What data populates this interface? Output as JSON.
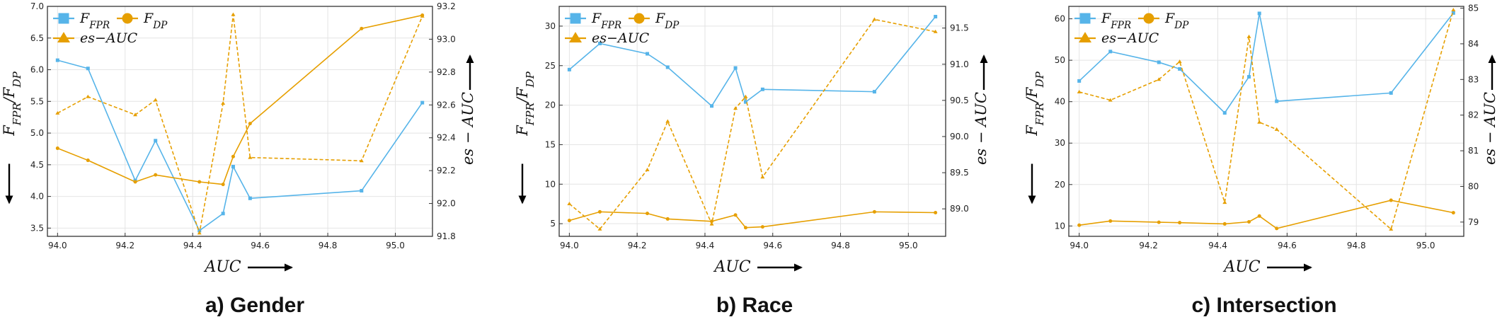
{
  "colors": {
    "fpr": "#56B4E9",
    "dp": "#E69F00",
    "es": "#E69F00"
  },
  "chart_data": [
    {
      "type": "line",
      "caption": "a) Gender",
      "xlabel": "AUC",
      "ylabel_left": "F_FPR/F_DP",
      "ylabel_right": "es − AUC",
      "xlim": [
        93.97,
        95.11
      ],
      "ylim_left": [
        3.37,
        7.0
      ],
      "ylim_right": [
        91.8,
        93.2
      ],
      "x_ticks": [
        94.0,
        94.2,
        94.4,
        94.6,
        94.8,
        95.0
      ],
      "x_tick_labels": [
        "94.0",
        "94.2",
        "94.4",
        "94.6",
        "94.8",
        "95.0"
      ],
      "y_left_ticks": [
        3.5,
        4.0,
        4.5,
        5.0,
        5.5,
        6.0,
        6.5,
        7.0
      ],
      "y_left_tick_labels": [
        "3.5",
        "4.0",
        "4.5",
        "5.0",
        "5.5",
        "6.0",
        "6.5",
        "7.0"
      ],
      "y_right_ticks": [
        91.8,
        92.0,
        92.2,
        92.4,
        92.6,
        92.8,
        93.0,
        93.2
      ],
      "y_right_tick_labels": [
        "91.8",
        "92.0",
        "92.2",
        "92.4",
        "92.6",
        "92.8",
        "93.0",
        "93.2"
      ],
      "series": [
        {
          "name": "F_FPR",
          "axis": "left",
          "marker": "square",
          "style": "solid",
          "x": [
            94.0,
            94.09,
            94.23,
            94.29,
            94.42,
            94.49,
            94.52,
            94.57,
            94.9,
            95.08
          ],
          "values": [
            6.15,
            6.02,
            4.25,
            4.88,
            3.46,
            3.73,
            4.47,
            3.97,
            4.09,
            5.48
          ]
        },
        {
          "name": "F_DP",
          "axis": "left",
          "marker": "circle",
          "style": "solid",
          "x": [
            94.0,
            94.09,
            94.23,
            94.29,
            94.42,
            94.49,
            94.52,
            94.57,
            94.9,
            95.08
          ],
          "values": [
            4.76,
            4.57,
            4.23,
            4.34,
            4.23,
            4.19,
            4.63,
            5.15,
            6.65,
            6.86
          ]
        },
        {
          "name": "es−AUC",
          "axis": "right",
          "marker": "triangle",
          "style": "dashed",
          "x": [
            94.0,
            94.09,
            94.23,
            94.29,
            94.42,
            94.49,
            94.52,
            94.57,
            94.9,
            95.08
          ],
          "values": [
            92.55,
            92.65,
            92.54,
            92.63,
            91.82,
            92.61,
            93.15,
            92.28,
            92.26,
            93.14
          ]
        }
      ]
    },
    {
      "type": "line",
      "caption": "b) Race",
      "xlabel": "AUC",
      "ylabel_left": "F_FPR/F_DP",
      "ylabel_right": "es − AUC",
      "xlim": [
        93.97,
        95.11
      ],
      "ylim_left": [
        3.4,
        32.5
      ],
      "ylim_right": [
        88.62,
        91.8
      ],
      "x_ticks": [
        94.0,
        94.2,
        94.4,
        94.6,
        94.8,
        95.0
      ],
      "x_tick_labels": [
        "94.0",
        "94.2",
        "94.4",
        "94.6",
        "94.8",
        "95.0"
      ],
      "y_left_ticks": [
        5,
        10,
        15,
        20,
        25,
        30
      ],
      "y_left_tick_labels": [
        "5",
        "10",
        "15",
        "20",
        "25",
        "30"
      ],
      "y_right_ticks": [
        89.0,
        89.5,
        90.0,
        90.5,
        91.0,
        91.5
      ],
      "y_right_tick_labels": [
        "89.0",
        "89.5",
        "90.0",
        "90.5",
        "91.0",
        "91.5"
      ],
      "series": [
        {
          "name": "F_FPR",
          "axis": "left",
          "marker": "square",
          "style": "solid",
          "x": [
            94.0,
            94.09,
            94.23,
            94.29,
            94.42,
            94.49,
            94.52,
            94.57,
            94.9,
            95.08
          ],
          "values": [
            24.5,
            27.8,
            26.5,
            24.8,
            19.9,
            24.7,
            20.4,
            22.0,
            21.7,
            31.2
          ]
        },
        {
          "name": "F_DP",
          "axis": "left",
          "marker": "circle",
          "style": "solid",
          "x": [
            94.0,
            94.09,
            94.23,
            94.29,
            94.42,
            94.49,
            94.52,
            94.57,
            94.9,
            95.08
          ],
          "values": [
            5.4,
            6.5,
            6.3,
            5.6,
            5.3,
            6.1,
            4.5,
            4.6,
            6.5,
            6.4
          ]
        },
        {
          "name": "es−AUC",
          "axis": "right",
          "marker": "triangle",
          "style": "dashed",
          "x": [
            94.0,
            94.09,
            94.23,
            94.29,
            94.42,
            94.49,
            94.52,
            94.57,
            94.9,
            95.08
          ],
          "values": [
            89.07,
            88.72,
            89.54,
            90.21,
            88.79,
            90.39,
            90.55,
            89.44,
            91.62,
            91.45
          ]
        }
      ]
    },
    {
      "type": "line",
      "caption": "c) Intersection",
      "xlabel": "AUC",
      "ylabel_left": "F_FPR/F_DP",
      "ylabel_right": "es − AUC",
      "xlim": [
        93.97,
        95.11
      ],
      "ylim_left": [
        7.5,
        63.0
      ],
      "ylim_right": [
        78.6,
        85.05
      ],
      "x_ticks": [
        94.0,
        94.2,
        94.4,
        94.6,
        94.8,
        95.0
      ],
      "x_tick_labels": [
        "94.0",
        "94.2",
        "94.4",
        "94.6",
        "94.8",
        "95.0"
      ],
      "y_left_ticks": [
        10,
        20,
        30,
        40,
        50,
        60
      ],
      "y_left_tick_labels": [
        "10",
        "20",
        "30",
        "40",
        "50",
        "60"
      ],
      "y_right_ticks": [
        79,
        80,
        81,
        82,
        83,
        84,
        85
      ],
      "y_right_tick_labels": [
        "79",
        "80",
        "81",
        "82",
        "83",
        "84",
        "85"
      ],
      "series": [
        {
          "name": "F_FPR",
          "axis": "left",
          "marker": "square",
          "style": "solid",
          "x": [
            94.0,
            94.09,
            94.23,
            94.29,
            94.42,
            94.49,
            94.52,
            94.57,
            94.9,
            95.08
          ],
          "values": [
            45.0,
            52.1,
            49.5,
            47.9,
            37.3,
            46.0,
            61.3,
            40.1,
            42.1,
            61.4
          ]
        },
        {
          "name": "F_DP",
          "axis": "left",
          "marker": "circle",
          "style": "solid",
          "x": [
            94.0,
            94.09,
            94.23,
            94.29,
            94.42,
            94.49,
            94.52,
            94.57,
            94.9,
            95.08
          ],
          "values": [
            10.2,
            11.2,
            10.9,
            10.8,
            10.5,
            11.0,
            12.4,
            9.4,
            16.2,
            13.2
          ]
        },
        {
          "name": "es−AUC",
          "axis": "right",
          "marker": "triangle",
          "style": "dashed",
          "x": [
            94.0,
            94.09,
            94.23,
            94.29,
            94.42,
            94.49,
            94.52,
            94.57,
            94.9,
            95.08
          ],
          "values": [
            82.65,
            82.42,
            83.0,
            83.5,
            79.55,
            84.2,
            81.8,
            81.6,
            78.8,
            84.95
          ]
        }
      ]
    }
  ]
}
